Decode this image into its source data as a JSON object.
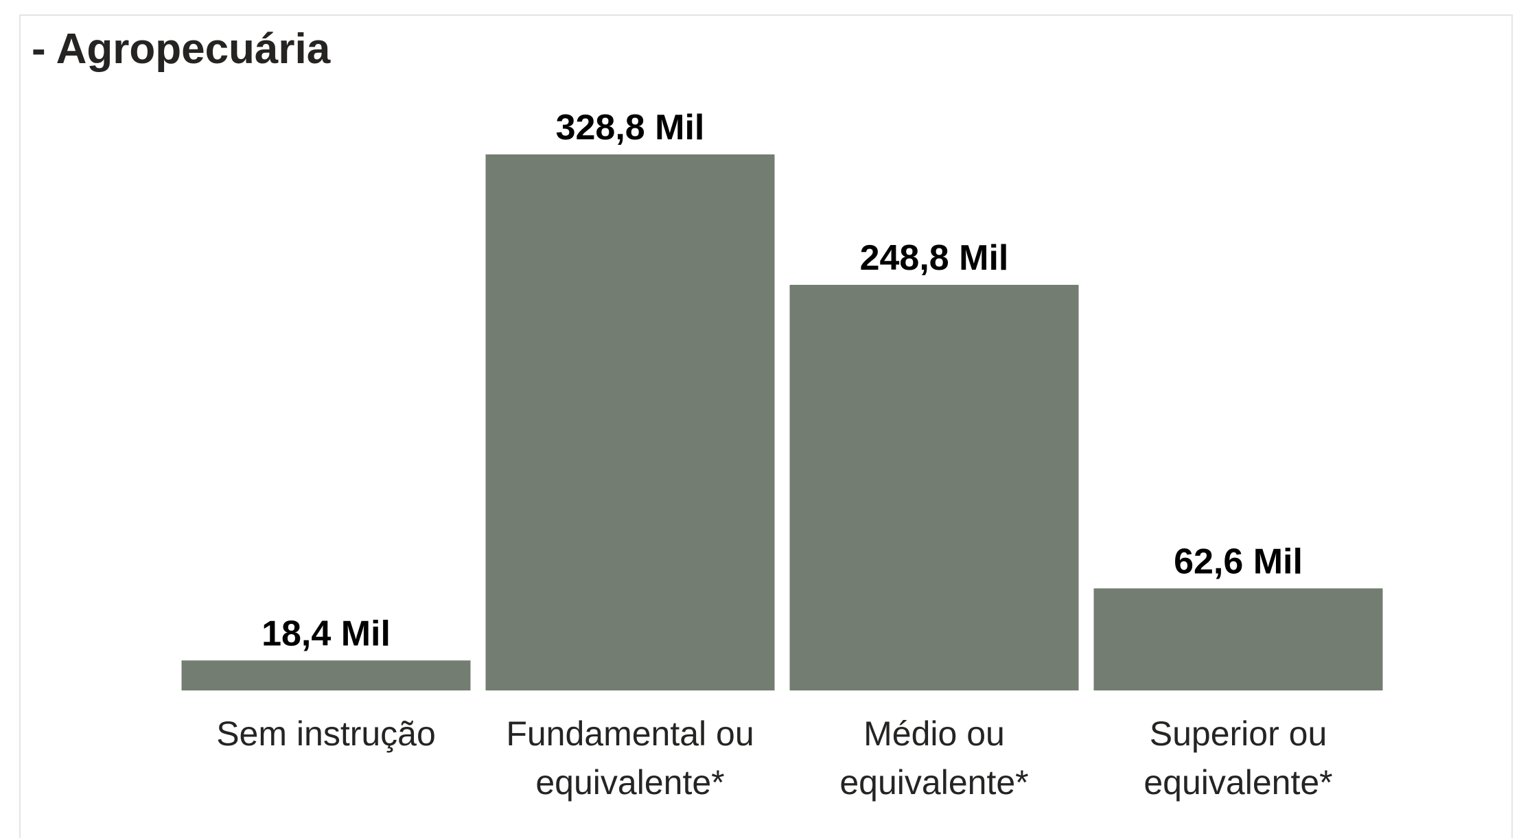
{
  "chart_data": {
    "type": "bar",
    "title": "- Agropecuária",
    "categories": [
      "Sem instrução",
      "Fundamental ou equivalente*",
      "Médio ou equivalente*",
      "Superior ou equivalente*"
    ],
    "values": [
      18.4,
      328.8,
      248.8,
      62.6
    ],
    "value_labels": [
      "18,4 Mil",
      "328,8 Mil",
      "248,8 Mil",
      "62,6 Mil"
    ],
    "color": "#737d71"
  }
}
